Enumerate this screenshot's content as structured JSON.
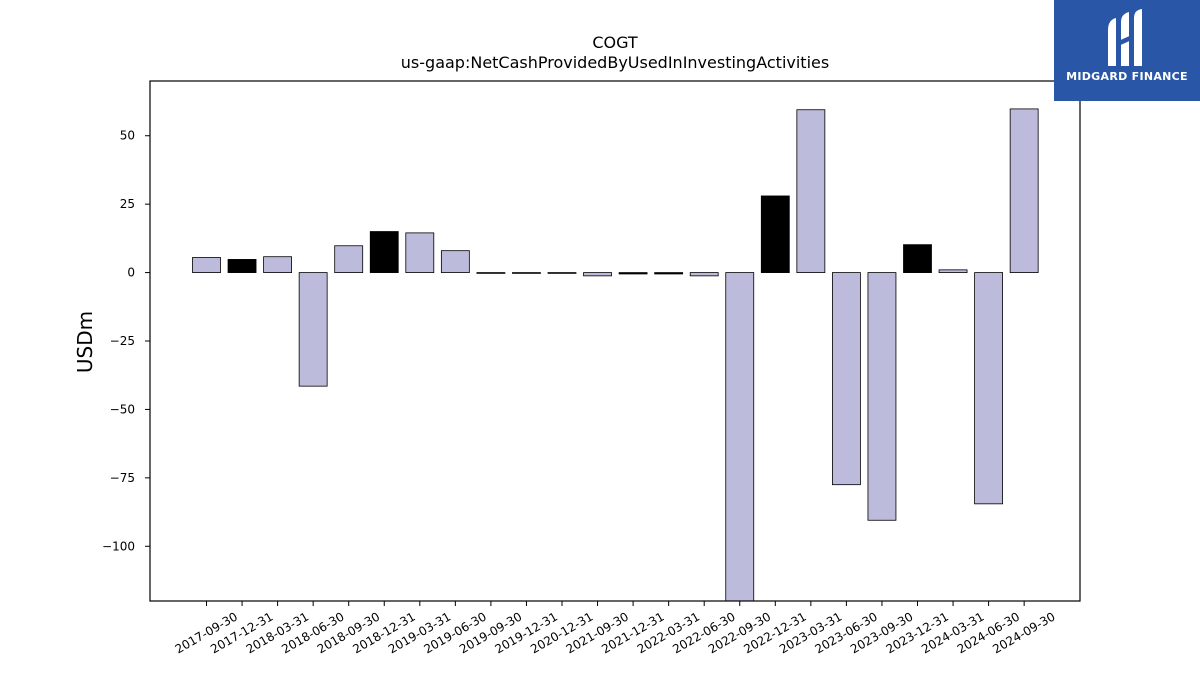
{
  "chart_data": {
    "type": "bar",
    "title": "COGT",
    "subtitle": "us-gaap:NetCashProvidedByUsedInInvestingActivities",
    "ylabel": "USDm",
    "xlabel": "",
    "ylim": [
      -120,
      70
    ],
    "yticks": [
      50,
      25,
      0,
      -25,
      -50,
      -75,
      -100
    ],
    "ytick_labels": [
      "50",
      "25",
      "0",
      "−25",
      "−50",
      "−75",
      "−100"
    ],
    "categories": [
      "2017-09-30",
      "2017-12-31",
      "2018-03-31",
      "2018-06-30",
      "2018-09-30",
      "2018-12-31",
      "2019-03-31",
      "2019-06-30",
      "2019-09-30",
      "2019-12-31",
      "2020-12-31",
      "2021-09-30",
      "2021-12-31",
      "2022-03-31",
      "2022-06-30",
      "2022-09-30",
      "2022-12-31",
      "2023-03-31",
      "2023-06-30",
      "2023-09-30",
      "2023-12-31",
      "2024-03-31",
      "2024-06-30",
      "2024-09-30"
    ],
    "values": [
      5.5,
      4.8,
      5.8,
      -41.5,
      9.8,
      15.0,
      14.5,
      8.0,
      -0.2,
      -0.2,
      -0.2,
      -1.2,
      -0.5,
      -0.5,
      -1.2,
      -122,
      28.0,
      59.5,
      -77.5,
      -90.5,
      10.2,
      1.0,
      -84.5,
      59.8
    ],
    "highlight": [
      false,
      true,
      false,
      false,
      false,
      true,
      false,
      false,
      true,
      true,
      true,
      false,
      true,
      true,
      false,
      false,
      true,
      false,
      false,
      false,
      true,
      false,
      false,
      false
    ],
    "colors": {
      "bar": "#bdbbdb",
      "highlight": "#000000",
      "edge": "#000000"
    },
    "grid": false
  },
  "logo": {
    "text": "MIDGARD FINANCE",
    "icon": "midgard-logo-icon",
    "color": "#2a56a8"
  }
}
